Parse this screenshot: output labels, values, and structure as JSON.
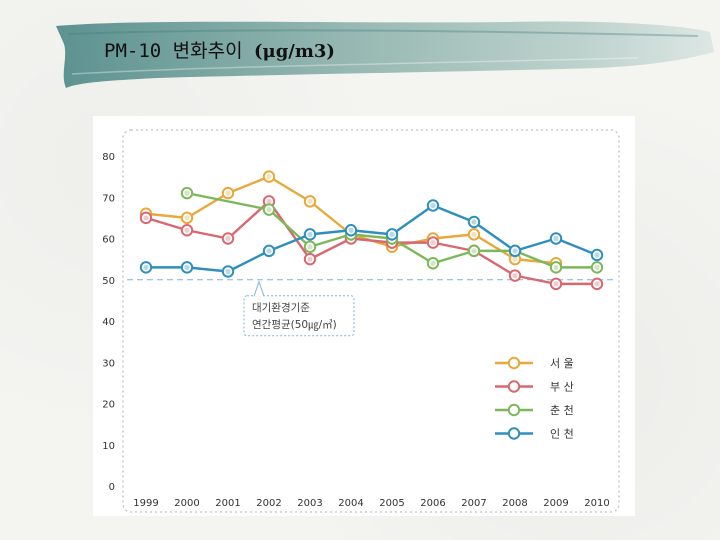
{
  "slide": {
    "title": "PM-10 변화추이 ",
    "unit": "(μg/m3)"
  },
  "colors": {
    "seoul": "#e8a83a",
    "busan": "#d86870",
    "chuncheon": "#7cb85a",
    "incheon": "#2e8fbf",
    "reference": "#7fb5d6",
    "frame": "#b9c3cb"
  },
  "chart_data": {
    "type": "line",
    "categories": [
      "1999",
      "2000",
      "2001",
      "2002",
      "2003",
      "2004",
      "2005",
      "2006",
      "2007",
      "2008",
      "2009",
      "2010"
    ],
    "ylim": [
      0,
      80
    ],
    "yticks": [
      0,
      10,
      20,
      30,
      40,
      50,
      60,
      70,
      80
    ],
    "ytick_labels": [
      "0",
      "10",
      "20",
      "30",
      "40",
      "50",
      "60",
      "70",
      "80"
    ],
    "grid": false,
    "legend_position": "right",
    "series": [
      {
        "name": "서 울",
        "color_key": "seoul",
        "values": [
          66,
          65,
          71,
          75,
          69,
          61,
          58,
          60,
          61,
          55,
          54,
          null
        ]
      },
      {
        "name": "부 산",
        "color_key": "busan",
        "values": [
          65,
          62,
          60,
          69,
          55,
          60,
          59,
          59,
          57,
          51,
          49,
          49
        ]
      },
      {
        "name": "춘 천",
        "color_key": "chuncheon",
        "values": [
          null,
          71,
          null,
          67,
          58,
          61,
          60,
          54,
          57,
          57,
          53,
          53
        ]
      },
      {
        "name": "인 천",
        "color_key": "incheon",
        "values": [
          53,
          53,
          52,
          57,
          61,
          62,
          61,
          68,
          64,
          57,
          60,
          56
        ]
      }
    ],
    "reference": {
      "value": 50,
      "label_line1": "대기환경기준",
      "label_line2": "연간평균(50㎍/㎥)"
    }
  }
}
